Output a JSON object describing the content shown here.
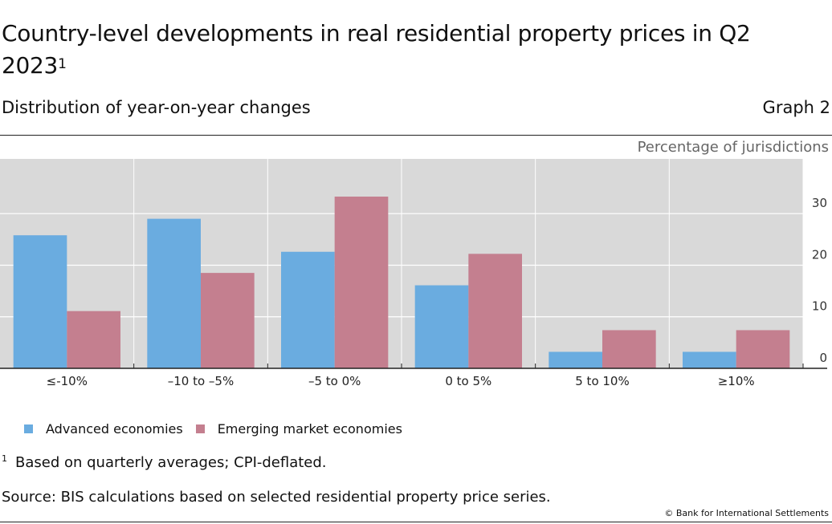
{
  "header": {
    "title": "Country-level developments in real residential property prices in Q2 2023",
    "title_note": "1",
    "subtitle": "Distribution of year-on-year changes",
    "graph_label": "Graph 2"
  },
  "chart_data": {
    "type": "bar",
    "categories": [
      "≤-10%",
      "–10 to –5%",
      "–5 to 0%",
      "0 to 5%",
      "5 to 10%",
      "≥10%"
    ],
    "series": [
      {
        "name": "Advanced economies",
        "color": "#6aace0",
        "values": [
          25.8,
          29.0,
          22.6,
          16.1,
          3.2,
          3.2
        ]
      },
      {
        "name": "Emerging market economies",
        "color": "#c47f8f",
        "values": [
          11.1,
          18.5,
          33.3,
          22.2,
          7.4,
          7.4
        ]
      }
    ],
    "ylabel": "Percentage of jurisdictions",
    "ylim": [
      0,
      36
    ],
    "yticks": [
      0,
      10,
      20,
      30
    ],
    "grid": true,
    "legend": "bottom-left"
  },
  "footnotes": {
    "marker": "1",
    "text": "Based on quarterly averages; CPI-deflated.",
    "source": "Source: BIS calculations based on selected residential property price series.",
    "copyright": "© Bank for International Settlements"
  }
}
